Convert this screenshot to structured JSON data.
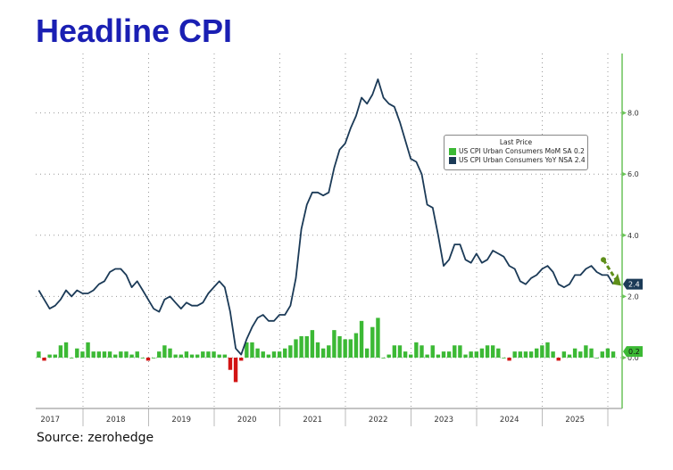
{
  "title": "Headline CPI",
  "source": "Source: zerohedge",
  "colors": {
    "title": "#1a1fb3",
    "line": "#1b3a57",
    "bar_pos": "#3cb935",
    "bar_neg": "#d21414",
    "axis": "#6cc35a",
    "annotation": "#5f8f1a"
  },
  "legend": {
    "header": "Last Price",
    "items": [
      {
        "label": "US CPI Urban Consumers MoM SA",
        "value": "0.2",
        "color": "#3cb935"
      },
      {
        "label": "US CPI Urban Consumers YoY NSA",
        "value": "2.4",
        "color": "#1b3a57"
      }
    ]
  },
  "chart_data": {
    "type": "line+bar",
    "title": "Headline CPI",
    "x_start": "2017-04",
    "x_end": "2026-01",
    "x_tick_labels": [
      "2017",
      "2018",
      "2019",
      "2020",
      "2021",
      "2022",
      "2023",
      "2024",
      "2025"
    ],
    "y_tick_labels": [
      "8.0",
      "6.0",
      "4.0",
      "2.0",
      "0.0"
    ],
    "y_ticks": [
      8,
      6,
      4,
      2,
      0
    ],
    "ylim": [
      -1.7,
      9.9
    ],
    "grid": true,
    "legend_position": "top-right",
    "last_labels": {
      "yoy": "2.4",
      "mom": "0.2"
    },
    "series": [
      {
        "name": "US CPI Urban Consumers YoY NSA",
        "type": "line",
        "values": [
          2.2,
          1.9,
          1.6,
          1.7,
          1.9,
          2.2,
          2.0,
          2.2,
          2.1,
          2.1,
          2.2,
          2.4,
          2.5,
          2.8,
          2.9,
          2.9,
          2.7,
          2.3,
          2.5,
          2.2,
          1.9,
          1.6,
          1.5,
          1.9,
          2.0,
          1.8,
          1.6,
          1.8,
          1.7,
          1.7,
          1.8,
          2.1,
          2.3,
          2.5,
          2.3,
          1.5,
          0.3,
          0.1,
          0.6,
          1.0,
          1.3,
          1.4,
          1.2,
          1.2,
          1.4,
          1.4,
          1.7,
          2.6,
          4.2,
          5.0,
          5.4,
          5.4,
          5.3,
          5.4,
          6.2,
          6.8,
          7.0,
          7.5,
          7.9,
          8.5,
          8.3,
          8.6,
          9.1,
          8.5,
          8.3,
          8.2,
          7.7,
          7.1,
          6.5,
          6.4,
          6.0,
          5.0,
          4.9,
          4.0,
          3.0,
          3.2,
          3.7,
          3.7,
          3.2,
          3.1,
          3.4,
          3.1,
          3.2,
          3.5,
          3.4,
          3.3,
          3.0,
          2.9,
          2.5,
          2.4,
          2.6,
          2.7,
          2.9,
          3.0,
          2.8,
          2.4,
          2.3,
          2.4,
          2.7,
          2.7,
          2.9,
          3.0,
          2.8,
          2.7,
          2.7,
          2.4
        ]
      },
      {
        "name": "US CPI Urban Consumers MoM SA",
        "type": "bar",
        "values": [
          0.2,
          -0.1,
          0.1,
          0.1,
          0.4,
          0.5,
          0.0,
          0.3,
          0.2,
          0.5,
          0.2,
          0.2,
          0.2,
          0.2,
          0.1,
          0.2,
          0.2,
          0.1,
          0.2,
          0.0,
          -0.1,
          0.0,
          0.2,
          0.4,
          0.3,
          0.1,
          0.1,
          0.2,
          0.1,
          0.1,
          0.2,
          0.2,
          0.2,
          0.1,
          0.1,
          -0.4,
          -0.8,
          -0.1,
          0.5,
          0.5,
          0.3,
          0.2,
          0.1,
          0.2,
          0.2,
          0.3,
          0.4,
          0.6,
          0.7,
          0.7,
          0.9,
          0.5,
          0.3,
          0.4,
          0.9,
          0.7,
          0.6,
          0.6,
          0.8,
          1.2,
          0.3,
          1.0,
          1.3,
          0.0,
          0.1,
          0.4,
          0.4,
          0.2,
          0.1,
          0.5,
          0.4,
          0.1,
          0.4,
          0.1,
          0.2,
          0.2,
          0.4,
          0.4,
          0.1,
          0.2,
          0.2,
          0.3,
          0.4,
          0.4,
          0.3,
          0.0,
          -0.1,
          0.2,
          0.2,
          0.2,
          0.2,
          0.3,
          0.4,
          0.5,
          0.2,
          -0.1,
          0.2,
          0.1,
          0.3,
          0.2,
          0.4,
          0.3,
          0.0,
          0.2,
          0.3,
          0.2
        ]
      }
    ]
  }
}
